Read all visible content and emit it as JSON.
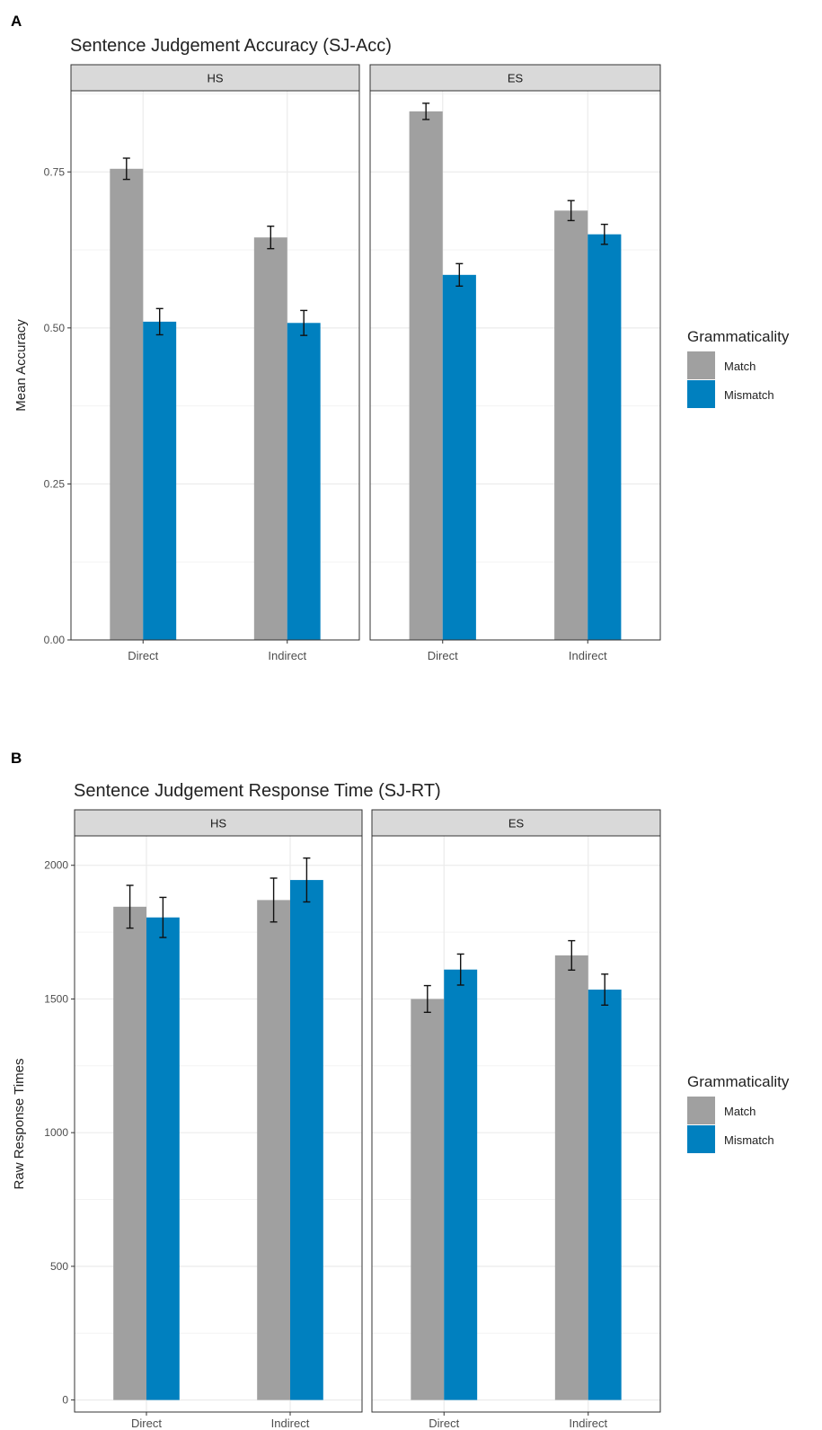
{
  "panels": [
    {
      "letter": "A"
    },
    {
      "letter": "B"
    }
  ],
  "colors": {
    "match": "#A0A0A0",
    "mismatch": "#0080BF",
    "strip": "#D9D9D9",
    "grid": "#EBEBEB",
    "frame": "#333333"
  },
  "chart_data": [
    {
      "type": "bar",
      "title": "Sentence Judgement Accuracy (SJ-Acc)",
      "xlabel": "",
      "ylabel": "Mean Accuracy",
      "ylim": [
        0,
        0.88
      ],
      "yticks": [
        0,
        0.25,
        0.5,
        0.75
      ],
      "ytick_labels": [
        "0.00",
        "0.25",
        "0.50",
        "0.75"
      ],
      "facets": [
        "HS",
        "ES"
      ],
      "categories": [
        "Direct",
        "Indirect"
      ],
      "legend": {
        "title": "Grammaticality",
        "position": "right"
      },
      "grid": true,
      "series": [
        {
          "name": "Match",
          "values": {
            "HS": [
              0.755,
              0.645
            ],
            "ES": [
              0.847,
              0.688
            ]
          },
          "errors": {
            "HS": [
              0.017,
              0.018
            ],
            "ES": [
              0.013,
              0.016
            ]
          }
        },
        {
          "name": "Mismatch",
          "values": {
            "HS": [
              0.51,
              0.508
            ],
            "ES": [
              0.585,
              0.65
            ]
          },
          "errors": {
            "HS": [
              0.021,
              0.02
            ],
            "ES": [
              0.018,
              0.016
            ]
          }
        }
      ]
    },
    {
      "type": "bar",
      "title": "Sentence Judgement Response Time (SJ-RT)",
      "xlabel": "",
      "ylabel": "Raw Response Times",
      "ylim": [
        -45,
        2110
      ],
      "yticks": [
        0,
        500,
        1000,
        1500,
        2000
      ],
      "ytick_labels": [
        "0",
        "500",
        "1000",
        "1500",
        "2000"
      ],
      "facets": [
        "HS",
        "ES"
      ],
      "categories": [
        "Direct",
        "Indirect"
      ],
      "legend": {
        "title": "Grammaticality",
        "position": "right"
      },
      "grid": true,
      "series": [
        {
          "name": "Match",
          "values": {
            "HS": [
              1845,
              1870
            ],
            "ES": [
              1500,
              1663
            ]
          },
          "errors": {
            "HS": [
              80,
              82
            ],
            "ES": [
              50,
              55
            ]
          }
        },
        {
          "name": "Mismatch",
          "values": {
            "HS": [
              1805,
              1945
            ],
            "ES": [
              1610,
              1535
            ]
          },
          "errors": {
            "HS": [
              75,
              82
            ],
            "ES": [
              58,
              58
            ]
          }
        }
      ]
    }
  ]
}
